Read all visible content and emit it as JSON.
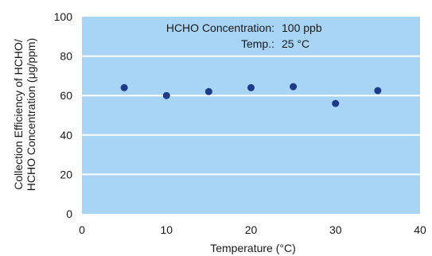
{
  "chart_data": {
    "type": "scatter",
    "xlabel": "Temperature (°C)",
    "ylabel_lines": [
      "Collection Efficiency of HCHO/",
      "HCHO Concentration (μg/ppm)"
    ],
    "xlim": [
      0,
      40
    ],
    "ylim": [
      0,
      100
    ],
    "xticks": [
      0,
      10,
      20,
      30,
      40
    ],
    "yticks": [
      0,
      20,
      40,
      60,
      80,
      100
    ],
    "x_tick_labels": [
      "0",
      "10",
      "20",
      "30",
      "40"
    ],
    "y_tick_labels": [
      "0",
      "20",
      "40",
      "60",
      "80",
      "100"
    ],
    "grid": true,
    "points": [
      {
        "x": 5,
        "y": 64
      },
      {
        "x": 10,
        "y": 60
      },
      {
        "x": 15,
        "y": 62
      },
      {
        "x": 20,
        "y": 64
      },
      {
        "x": 25,
        "y": 64.5
      },
      {
        "x": 30,
        "y": 56
      },
      {
        "x": 35,
        "y": 62.5
      }
    ],
    "annotations": {
      "line1_label": "HCHO Concentration:",
      "line1_value": "100 ppb",
      "line2_label": "Temp.:",
      "line2_value": "25 °C"
    }
  },
  "colors": {
    "plot_background": "#a8d4f5",
    "gridline": "#ffffff",
    "marker": "#1e3a8a",
    "text": "#1a1a1a"
  }
}
